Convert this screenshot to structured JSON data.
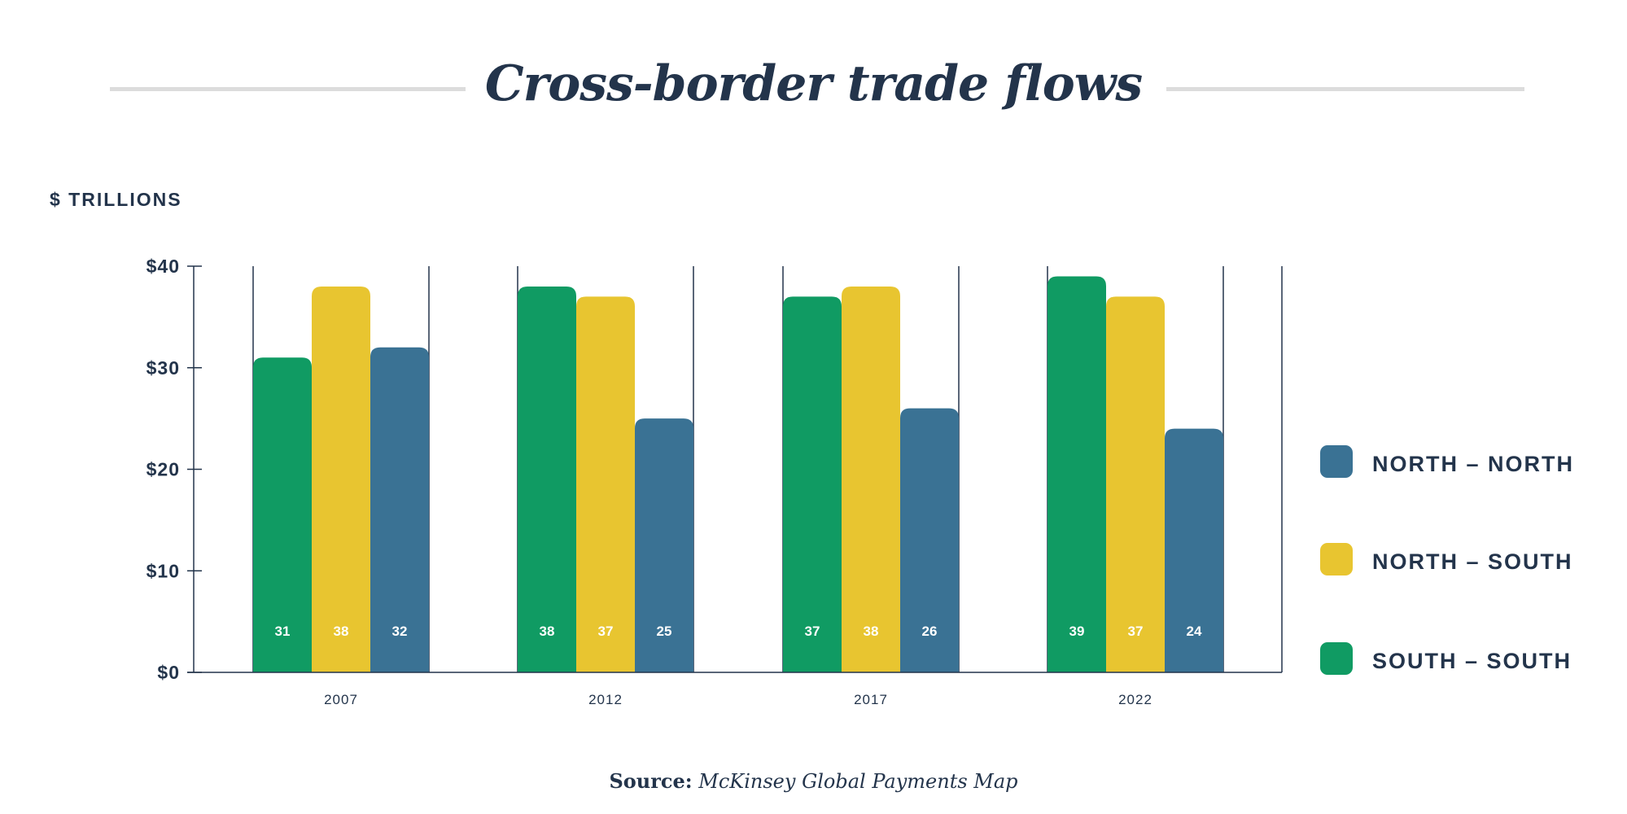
{
  "title": "Cross-border trade flows",
  "unit_label": "$ TRILLIONS",
  "source": {
    "prefix": "Source:",
    "name": "McKinsey Global Payments Map"
  },
  "legend": [
    {
      "label": "NORTH – NORTH",
      "color": "#3a7294"
    },
    {
      "label": "NORTH – SOUTH",
      "color": "#e8c530"
    },
    {
      "label": "SOUTH – SOUTH",
      "color": "#109b63"
    }
  ],
  "chart_data": {
    "type": "bar",
    "categories": [
      "2007",
      "2012",
      "2017",
      "2022"
    ],
    "series": [
      {
        "name": "SOUTH – SOUTH",
        "color": "#109b63",
        "values": [
          31,
          38,
          37,
          39
        ]
      },
      {
        "name": "NORTH – SOUTH",
        "color": "#e8c530",
        "values": [
          38,
          37,
          38,
          37
        ]
      },
      {
        "name": "NORTH – NORTH",
        "color": "#3a7294",
        "values": [
          32,
          25,
          26,
          24
        ]
      }
    ],
    "ylim": [
      0,
      40
    ],
    "yticks": [
      0,
      10,
      20,
      30,
      40
    ],
    "ytick_labels": [
      "$0",
      "$10",
      "$20",
      "$30",
      "$40"
    ],
    "ylabel": "$ TRILLIONS",
    "xlabel": "",
    "grid": false,
    "legend_position": "right"
  }
}
